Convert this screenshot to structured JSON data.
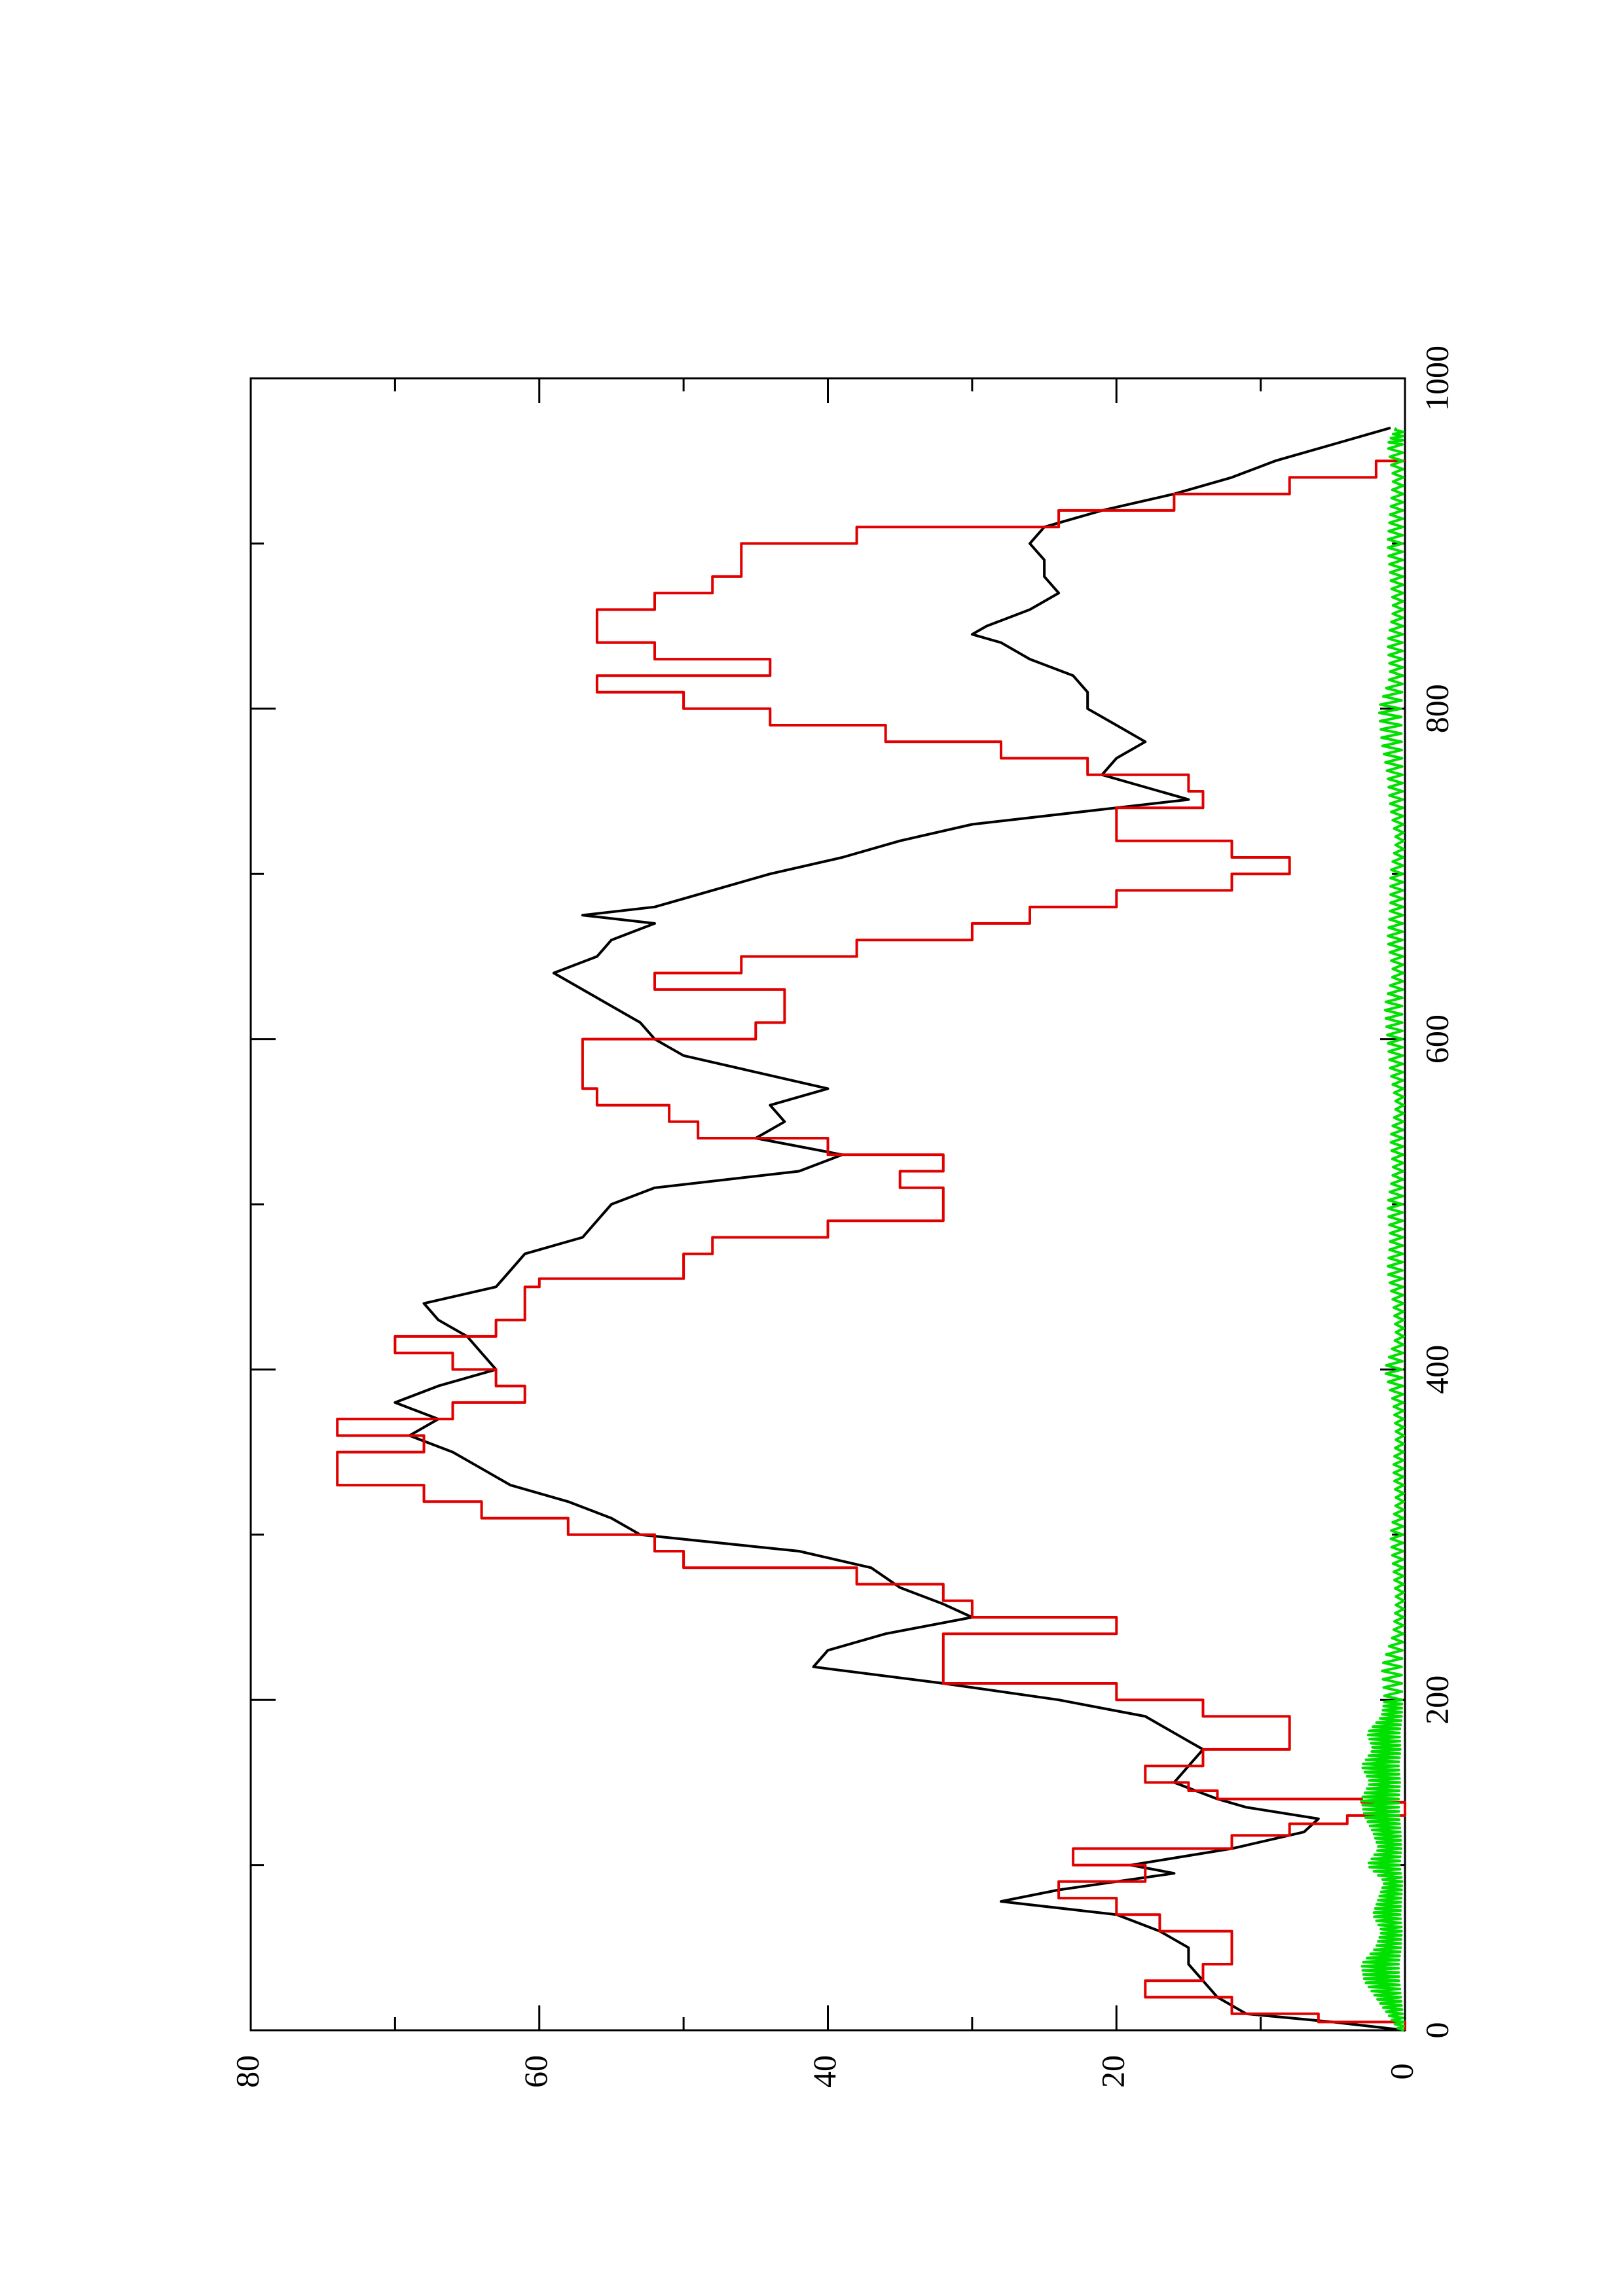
{
  "chart_data": {
    "type": "line",
    "title": "",
    "xlabel": "",
    "ylabel": "",
    "xlim": [
      0,
      1000
    ],
    "ylim": [
      0,
      80
    ],
    "x_ticks": [
      0,
      200,
      400,
      600,
      800,
      1000
    ],
    "x_tick_labels": [
      "0",
      "200",
      "400",
      "600",
      "800",
      "1000"
    ],
    "x_minor_ticks": [
      100,
      300,
      500,
      700,
      900
    ],
    "y_ticks": [
      0,
      20,
      40,
      60,
      80
    ],
    "y_tick_labels": [
      "0",
      "20",
      "40",
      "60",
      "80"
    ],
    "y_minor_ticks": [
      10,
      30,
      50,
      70
    ],
    "orientation": "rotated 90 degrees counter-clockwise",
    "grid": false,
    "legend": "none",
    "series": [
      {
        "color": "#000000",
        "style": "smooth",
        "x": [
          0,
          5,
          10,
          20,
          30,
          40,
          50,
          60,
          70,
          78,
          85,
          95,
          100,
          110,
          120,
          128,
          135,
          140,
          150,
          160,
          170,
          180,
          190,
          200,
          210,
          220,
          230,
          240,
          250,
          258,
          268,
          280,
          290,
          300,
          310,
          320,
          330,
          340,
          350,
          360,
          370,
          380,
          390,
          400,
          410,
          420,
          430,
          440,
          450,
          460,
          470,
          480,
          490,
          500,
          510,
          520,
          530,
          540,
          550,
          560,
          570,
          580,
          590,
          600,
          610,
          620,
          630,
          640,
          650,
          660,
          670,
          675,
          680,
          690,
          700,
          710,
          720,
          730,
          740,
          745,
          750,
          760,
          770,
          780,
          790,
          800,
          810,
          820,
          830,
          840,
          845,
          850,
          860,
          870,
          880,
          890,
          900,
          910,
          920,
          930,
          940,
          950,
          960,
          970
        ],
        "y": [
          0,
          5,
          11,
          13,
          14,
          15,
          15,
          17,
          20,
          28,
          24,
          16,
          19,
          12,
          7,
          6,
          11,
          13,
          16,
          15,
          14,
          16,
          18,
          24,
          32,
          41,
          40,
          36,
          30,
          32,
          35,
          37,
          42,
          53,
          55,
          58,
          62,
          64,
          66,
          69,
          67,
          70,
          67,
          63,
          64,
          65,
          67,
          68,
          63,
          62,
          61,
          57,
          56,
          55,
          52,
          42,
          39,
          45,
          43,
          44,
          40,
          45,
          50,
          52,
          53,
          55,
          57,
          59,
          56,
          55,
          52,
          57,
          52,
          48,
          44,
          39,
          35,
          30,
          20,
          15,
          17,
          21,
          20,
          18,
          20,
          22,
          22,
          23,
          26,
          28,
          30,
          29,
          26,
          24,
          25,
          25,
          26,
          25,
          21,
          16,
          12,
          9,
          5,
          1
        ]
      },
      {
        "color": "#e00000",
        "style": "step",
        "x": [
          0,
          5,
          10,
          20,
          30,
          40,
          50,
          60,
          70,
          80,
          90,
          100,
          110,
          118,
          125,
          130,
          138,
          140,
          145,
          150,
          160,
          170,
          180,
          185,
          190,
          200,
          210,
          220,
          230,
          240,
          250,
          260,
          270,
          280,
          290,
          300,
          310,
          320,
          330,
          340,
          350,
          360,
          370,
          380,
          385,
          390,
          400,
          410,
          420,
          430,
          440,
          450,
          455,
          460,
          470,
          480,
          490,
          500,
          510,
          520,
          530,
          540,
          550,
          560,
          570,
          580,
          590,
          600,
          610,
          620,
          630,
          640,
          650,
          660,
          670,
          680,
          690,
          700,
          710,
          720,
          730,
          740,
          750,
          760,
          770,
          780,
          790,
          800,
          810,
          820,
          830,
          840,
          850,
          860,
          870,
          880,
          890,
          900,
          910,
          920,
          930,
          940,
          950
        ],
        "y": [
          0,
          6,
          12,
          18,
          14,
          12,
          12,
          17,
          20,
          24,
          18,
          23,
          12,
          8,
          4,
          0,
          3,
          13,
          15,
          18,
          14,
          8,
          8,
          8,
          14,
          20,
          32,
          32,
          32,
          20,
          30,
          32,
          38,
          50,
          52,
          58,
          64,
          68,
          74,
          74,
          68,
          74,
          66,
          61,
          61,
          63,
          66,
          70,
          63,
          61,
          61,
          60,
          50,
          50,
          48,
          40,
          32,
          32,
          35,
          32,
          40,
          49,
          51,
          56,
          57,
          57,
          57,
          45,
          43,
          43,
          52,
          46,
          38,
          30,
          26,
          20,
          12,
          8,
          12,
          20,
          20,
          14,
          15,
          22,
          28,
          36,
          44,
          50,
          56,
          44,
          52,
          56,
          56,
          52,
          48,
          46,
          46,
          38,
          24,
          16,
          8,
          2,
          0
        ]
      },
      {
        "color": "#00e000",
        "style": "noisy",
        "x": [
          0,
          10,
          20,
          30,
          40,
          50,
          60,
          70,
          80,
          90,
          100,
          110,
          120,
          130,
          140,
          150,
          160,
          170,
          180,
          190,
          200,
          220,
          240,
          260,
          280,
          300,
          320,
          340,
          360,
          380,
          400,
          420,
          440,
          460,
          480,
          500,
          520,
          540,
          560,
          580,
          600,
          620,
          640,
          660,
          680,
          700,
          720,
          740,
          760,
          780,
          800,
          820,
          840,
          860,
          880,
          900,
          920,
          940,
          960,
          970
        ],
        "y": [
          0.4,
          1.2,
          2.0,
          2.8,
          3.0,
          2.0,
          1.6,
          2.2,
          1.8,
          1.4,
          2.6,
          1.8,
          2.2,
          2.8,
          3.0,
          2.4,
          3.0,
          2.2,
          2.6,
          1.6,
          1.4,
          1.6,
          0.8,
          0.6,
          0.8,
          1.0,
          0.6,
          0.8,
          0.6,
          0.8,
          1.4,
          0.6,
          0.8,
          1.2,
          1.0,
          1.2,
          0.8,
          1.0,
          0.6,
          1.0,
          1.2,
          1.4,
          0.8,
          1.2,
          1.0,
          1.0,
          0.6,
          1.0,
          1.2,
          1.6,
          1.8,
          1.0,
          1.2,
          0.8,
          1.0,
          1.2,
          1.0,
          0.8,
          1.2,
          0.6
        ]
      }
    ]
  }
}
